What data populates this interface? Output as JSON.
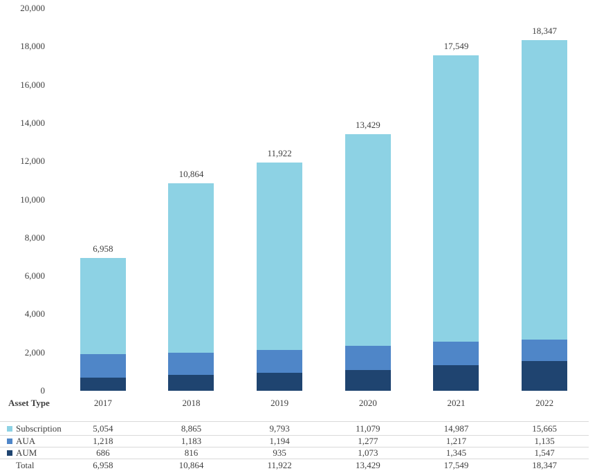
{
  "chart_data": {
    "type": "bar",
    "stacked": true,
    "title": "",
    "xlabel": "",
    "ylabel": "",
    "categories": [
      "2017",
      "2018",
      "2019",
      "2020",
      "2021",
      "2022"
    ],
    "series": [
      {
        "name": "Subscription",
        "color": "#8DD2E4",
        "values": [
          5054,
          8865,
          9793,
          11079,
          14987,
          15665
        ],
        "labels": [
          "5,054",
          "8,865",
          "9,793",
          "11,079",
          "14,987",
          "15,665"
        ]
      },
      {
        "name": "AUA",
        "color": "#4F86C8",
        "values": [
          1218,
          1183,
          1194,
          1277,
          1217,
          1135
        ],
        "labels": [
          "1,218",
          "1,183",
          "1,194",
          "1,277",
          "1,217",
          "1,135"
        ]
      },
      {
        "name": "AUM",
        "color": "#1F4470",
        "values": [
          686,
          816,
          935,
          1073,
          1345,
          1547
        ],
        "labels": [
          "686",
          "816",
          "935",
          "1,073",
          "1,345",
          "1,547"
        ]
      }
    ],
    "stack_order_bottom_to_top": [
      "AUM",
      "AUA",
      "Subscription"
    ],
    "totals": {
      "name": "Total",
      "values": [
        6958,
        10864,
        11922,
        13429,
        17549,
        18347
      ],
      "labels": [
        "6,958",
        "10,864",
        "11,922",
        "13,429",
        "17,549",
        "18,347"
      ]
    },
    "y_axis": {
      "min": 0,
      "max": 20000,
      "step": 2000,
      "tick_labels": [
        "0",
        "2,000",
        "4,000",
        "6,000",
        "8,000",
        "10,000",
        "12,000",
        "14,000",
        "16,000",
        "18,000",
        "20,000"
      ]
    },
    "grid": false,
    "legend_position": "table-below",
    "bar_value_labels": "totals-above-bars"
  },
  "table": {
    "header_label": "Asset Type"
  },
  "colors": {
    "text": "#3F3F3F",
    "rule": "#D9D9D9",
    "background": "#FFFFFF"
  }
}
